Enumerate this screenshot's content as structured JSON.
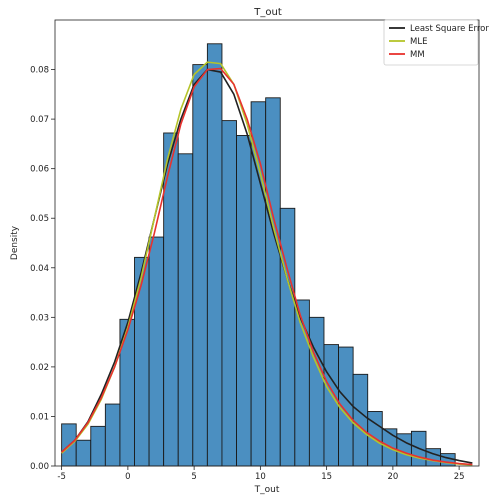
{
  "chart_data": {
    "type": "bar",
    "title": "T_out",
    "xlabel": "T_out",
    "ylabel": "Density",
    "xlim": [
      -5.5,
      26.5
    ],
    "ylim": [
      0,
      0.09
    ],
    "xticks": [
      -5,
      0,
      5,
      10,
      15,
      20,
      25
    ],
    "yticks": [
      0.0,
      0.01,
      0.02,
      0.03,
      0.04,
      0.05,
      0.06,
      0.07,
      0.08
    ],
    "ytick_labels": [
      "0.00",
      "0.01",
      "0.02",
      "0.03",
      "0.04",
      "0.05",
      "0.06",
      "0.07",
      "0.08"
    ],
    "grid": false,
    "legend_position": "top-right",
    "histogram": {
      "bin_start": -5,
      "bin_width": 1.1,
      "densities": [
        0.0085,
        0.0052,
        0.008,
        0.0125,
        0.0296,
        0.0421,
        0.0462,
        0.0672,
        0.063,
        0.081,
        0.0852,
        0.0697,
        0.0667,
        0.0735,
        0.0743,
        0.052,
        0.0335,
        0.03,
        0.0245,
        0.024,
        0.0185,
        0.011,
        0.0075,
        0.0065,
        0.007,
        0.0035,
        0.0025
      ],
      "color": "#4b8fc1",
      "edge_color": "#1a1a1a"
    },
    "series": [
      {
        "name": "Least Square Error",
        "color": "#222222",
        "x": [
          -5,
          -4,
          -3,
          -2,
          -1,
          0,
          1,
          2,
          3,
          4,
          5,
          6,
          7,
          8,
          9,
          10,
          11,
          12,
          13,
          14,
          15,
          16,
          17,
          18,
          19,
          20,
          21,
          22,
          23,
          24,
          25,
          26
        ],
        "y": [
          0.0028,
          0.0052,
          0.009,
          0.0145,
          0.021,
          0.029,
          0.039,
          0.05,
          0.061,
          0.07,
          0.077,
          0.08,
          0.0795,
          0.075,
          0.067,
          0.057,
          0.047,
          0.038,
          0.03,
          0.024,
          0.019,
          0.015,
          0.012,
          0.0098,
          0.008,
          0.0062,
          0.0047,
          0.0035,
          0.0025,
          0.0017,
          0.0011,
          0.0006
        ]
      },
      {
        "name": "MLE",
        "color": "#b5c42a",
        "x": [
          -5,
          -4,
          -3,
          -2,
          -1,
          0,
          1,
          2,
          3,
          4,
          5,
          6,
          7,
          8,
          9,
          10,
          11,
          12,
          13,
          14,
          15,
          16,
          17,
          18,
          19,
          20,
          21,
          22,
          23,
          24,
          25,
          26
        ],
        "y": [
          0.0026,
          0.005,
          0.0085,
          0.0135,
          0.02,
          0.028,
          0.038,
          0.05,
          0.062,
          0.072,
          0.079,
          0.0815,
          0.0812,
          0.077,
          0.069,
          0.059,
          0.048,
          0.038,
          0.029,
          0.022,
          0.016,
          0.0118,
          0.0087,
          0.0064,
          0.0046,
          0.0033,
          0.0023,
          0.0016,
          0.0011,
          0.0007,
          0.0004,
          0.0002
        ]
      },
      {
        "name": "MM",
        "color": "#e8322e",
        "x": [
          -5,
          -4,
          -3,
          -2,
          -1,
          0,
          1,
          2,
          3,
          4,
          5,
          6,
          7,
          8,
          9,
          10,
          11,
          12,
          13,
          14,
          15,
          16,
          17,
          18,
          19,
          20,
          21,
          22,
          23,
          24,
          25,
          26
        ],
        "y": [
          0.0028,
          0.0052,
          0.0088,
          0.0138,
          0.02,
          0.0275,
          0.0365,
          0.047,
          0.0585,
          0.069,
          0.0765,
          0.08,
          0.0802,
          0.077,
          0.07,
          0.061,
          0.05,
          0.04,
          0.0305,
          0.023,
          0.017,
          0.0125,
          0.0092,
          0.0068,
          0.005,
          0.0036,
          0.0026,
          0.0018,
          0.0012,
          0.0008,
          0.0005,
          0.0003
        ]
      }
    ]
  }
}
